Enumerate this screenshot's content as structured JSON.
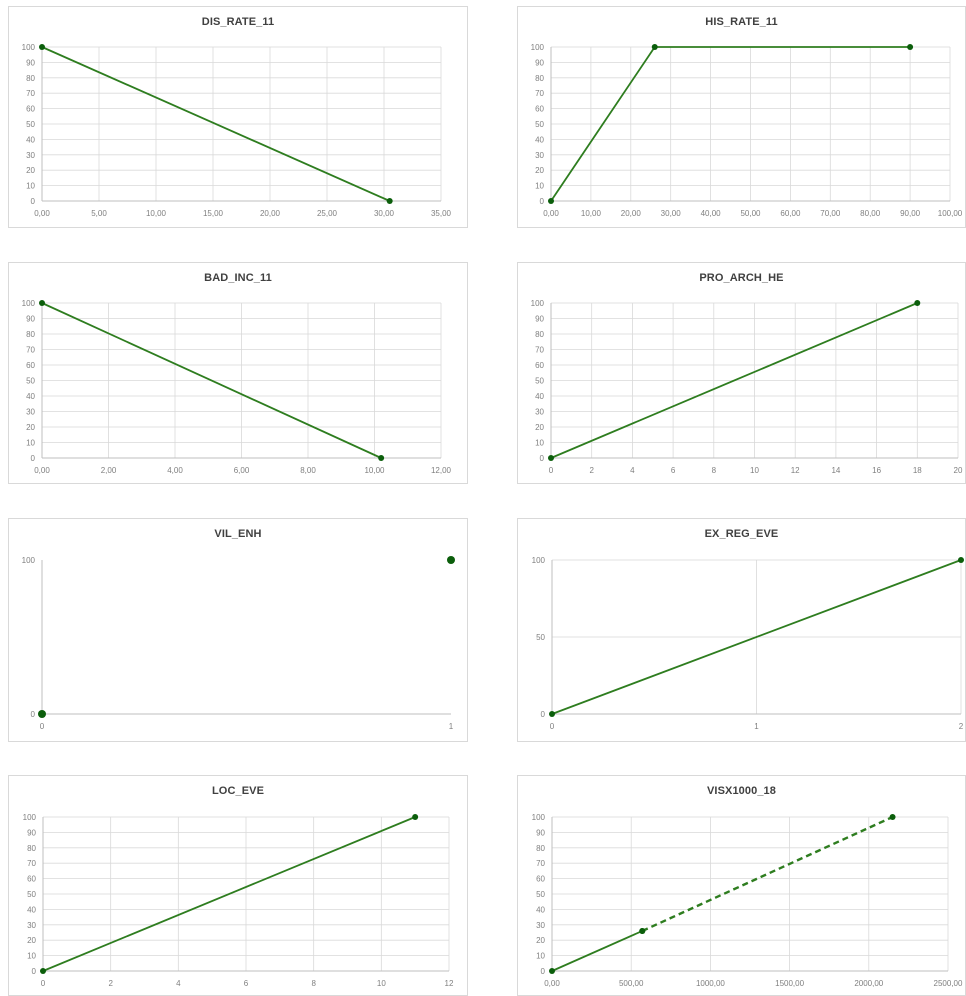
{
  "theme": {
    "line_color": "#2e7d1f",
    "marker_color": "#0b5e0b",
    "grid_color": "#d9d9d9",
    "axis_color": "#bfbfbf",
    "tick_color": "#7f7f7f",
    "title_color": "#404040"
  },
  "chart_data": [
    {
      "type": "line",
      "title": "DIS_RATE_11",
      "xlim": [
        0,
        35
      ],
      "ylim": [
        0,
        100
      ],
      "xticks": [
        0,
        5,
        10,
        15,
        20,
        25,
        30,
        35
      ],
      "xtick_labels": [
        "0,00",
        "5,00",
        "10,00",
        "15,00",
        "20,00",
        "25,00",
        "30,00",
        "35,00"
      ],
      "yticks": [
        0,
        10,
        20,
        30,
        40,
        50,
        60,
        70,
        80,
        90,
        100
      ],
      "ytick_labels": [
        "0",
        "10",
        "20",
        "30",
        "40",
        "50",
        "60",
        "70",
        "80",
        "90",
        "100"
      ],
      "grid": true,
      "series": [
        {
          "x": [
            0,
            30.5
          ],
          "y": [
            100,
            0
          ],
          "style": "solid"
        }
      ]
    },
    {
      "type": "line",
      "title": "HIS_RATE_11",
      "xlim": [
        0,
        100
      ],
      "ylim": [
        0,
        100
      ],
      "xticks": [
        0,
        10,
        20,
        30,
        40,
        50,
        60,
        70,
        80,
        90,
        100
      ],
      "xtick_labels": [
        "0,00",
        "10,00",
        "20,00",
        "30,00",
        "40,00",
        "50,00",
        "60,00",
        "70,00",
        "80,00",
        "90,00",
        "100,00"
      ],
      "yticks": [
        0,
        10,
        20,
        30,
        40,
        50,
        60,
        70,
        80,
        90,
        100
      ],
      "ytick_labels": [
        "0",
        "10",
        "20",
        "30",
        "40",
        "50",
        "60",
        "70",
        "80",
        "90",
        "100"
      ],
      "grid": true,
      "series": [
        {
          "x": [
            0,
            26,
            90
          ],
          "y": [
            0,
            100,
            100
          ],
          "style": "solid"
        }
      ]
    },
    {
      "type": "line",
      "title": "BAD_INC_11",
      "xlim": [
        0,
        12
      ],
      "ylim": [
        0,
        100
      ],
      "xticks": [
        0,
        2,
        4,
        6,
        8,
        10,
        12
      ],
      "xtick_labels": [
        "0,00",
        "2,00",
        "4,00",
        "6,00",
        "8,00",
        "10,00",
        "12,00"
      ],
      "yticks": [
        0,
        10,
        20,
        30,
        40,
        50,
        60,
        70,
        80,
        90,
        100
      ],
      "ytick_labels": [
        "0",
        "10",
        "20",
        "30",
        "40",
        "50",
        "60",
        "70",
        "80",
        "90",
        "100"
      ],
      "grid": true,
      "series": [
        {
          "x": [
            0,
            10.2
          ],
          "y": [
            100,
            0
          ],
          "style": "solid"
        }
      ]
    },
    {
      "type": "line",
      "title": "PRO_ARCH_HE",
      "xlim": [
        0,
        20
      ],
      "ylim": [
        0,
        100
      ],
      "xticks": [
        0,
        2,
        4,
        6,
        8,
        10,
        12,
        14,
        16,
        18,
        20
      ],
      "xtick_labels": [
        "0",
        "2",
        "4",
        "6",
        "8",
        "10",
        "12",
        "14",
        "16",
        "18",
        "20"
      ],
      "yticks": [
        0,
        10,
        20,
        30,
        40,
        50,
        60,
        70,
        80,
        90,
        100
      ],
      "ytick_labels": [
        "0",
        "10",
        "20",
        "30",
        "40",
        "50",
        "60",
        "70",
        "80",
        "90",
        "100"
      ],
      "grid": true,
      "series": [
        {
          "x": [
            0,
            18
          ],
          "y": [
            0,
            100
          ],
          "style": "solid"
        }
      ]
    },
    {
      "type": "scatter",
      "title": "VIL_ENH",
      "xlim": [
        0,
        1
      ],
      "ylim": [
        0,
        100
      ],
      "xticks": [
        0,
        1
      ],
      "xtick_labels": [
        "0",
        "1"
      ],
      "yticks": [
        0,
        100
      ],
      "ytick_labels": [
        "0",
        "100"
      ],
      "grid": false,
      "series": [
        {
          "x": [
            0,
            1
          ],
          "y": [
            0,
            100
          ],
          "style": "none",
          "marker": "large"
        }
      ]
    },
    {
      "type": "line",
      "title": "EX_REG_EVE",
      "xlim": [
        0,
        2
      ],
      "ylim": [
        0,
        100
      ],
      "xticks": [
        0,
        1,
        2
      ],
      "xtick_labels": [
        "0",
        "1",
        "2"
      ],
      "yticks": [
        0,
        50,
        100
      ],
      "ytick_labels": [
        "0",
        "50",
        "100"
      ],
      "grid": true,
      "series": [
        {
          "x": [
            0,
            2
          ],
          "y": [
            0,
            100
          ],
          "style": "solid"
        }
      ]
    },
    {
      "type": "line",
      "title": "LOC_EVE",
      "xlim": [
        0,
        12
      ],
      "ylim": [
        0,
        100
      ],
      "xticks": [
        0,
        2,
        4,
        6,
        8,
        10,
        12
      ],
      "xtick_labels": [
        "0",
        "2",
        "4",
        "6",
        "8",
        "10",
        "12"
      ],
      "yticks": [
        0,
        10,
        20,
        30,
        40,
        50,
        60,
        70,
        80,
        90,
        100
      ],
      "ytick_labels": [
        "0",
        "10",
        "20",
        "30",
        "40",
        "50",
        "60",
        "70",
        "80",
        "90",
        "100"
      ],
      "grid": true,
      "series": [
        {
          "x": [
            0,
            11
          ],
          "y": [
            0,
            100
          ],
          "style": "solid"
        }
      ]
    },
    {
      "type": "line",
      "title": "VISX1000_18",
      "xlim": [
        0,
        2500
      ],
      "ylim": [
        0,
        100
      ],
      "xticks": [
        0,
        500,
        1000,
        1500,
        2000,
        2500
      ],
      "xtick_labels": [
        "0,00",
        "500,00",
        "1000,00",
        "1500,00",
        "2000,00",
        "2500,00"
      ],
      "yticks": [
        0,
        10,
        20,
        30,
        40,
        50,
        60,
        70,
        80,
        90,
        100
      ],
      "ytick_labels": [
        "0",
        "10",
        "20",
        "30",
        "40",
        "50",
        "60",
        "70",
        "80",
        "90",
        "100"
      ],
      "grid": true,
      "series": [
        {
          "x": [
            0,
            570
          ],
          "y": [
            0,
            26
          ],
          "style": "solid"
        },
        {
          "x": [
            570,
            2150
          ],
          "y": [
            26,
            100
          ],
          "style": "dashed"
        }
      ]
    }
  ]
}
